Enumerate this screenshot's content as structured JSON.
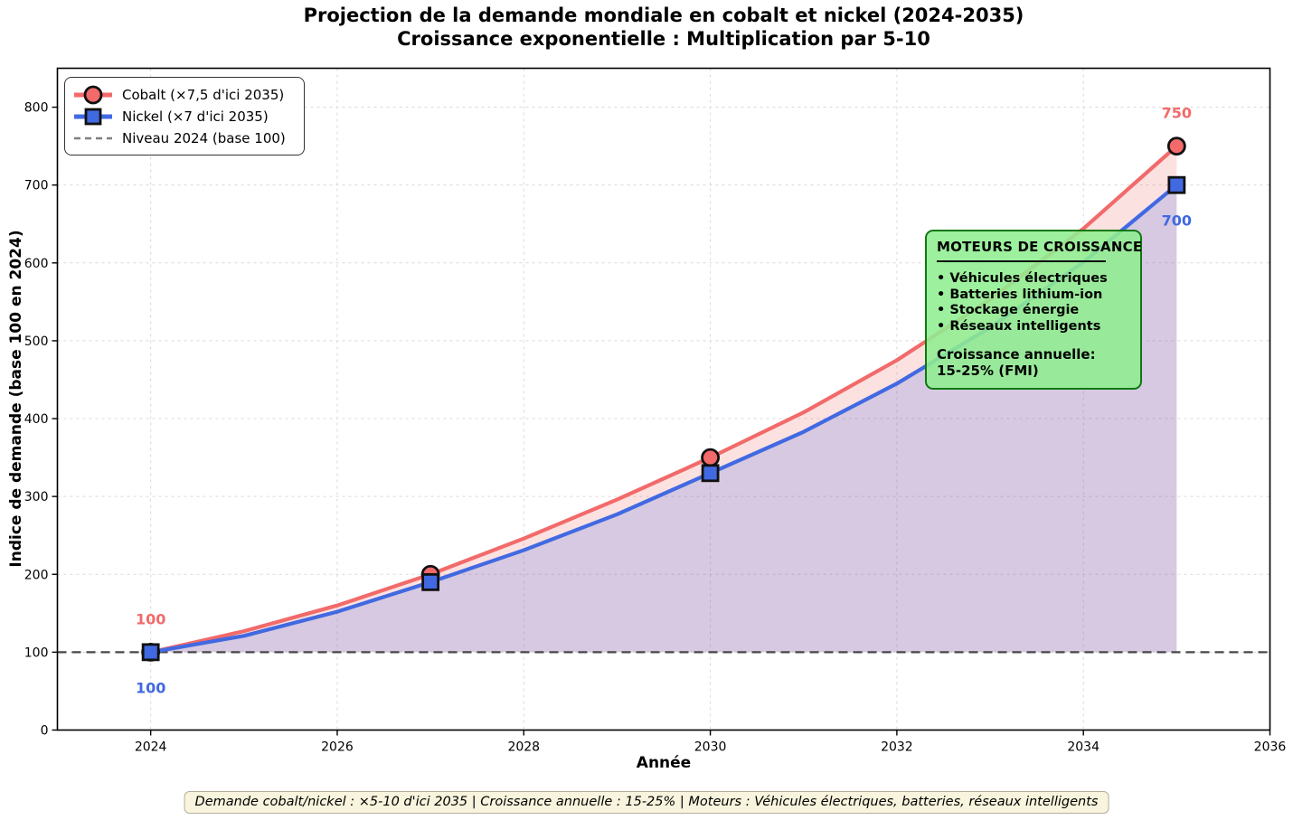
{
  "figure": {
    "title_line1": "Projection de la demande mondiale en cobalt et nickel (2024-2035)",
    "title_line2": "Croissance exponentielle : Multiplication par 5-10"
  },
  "chart_data": {
    "type": "line",
    "title": "Projection de la demande mondiale en cobalt et nickel (2024-2035) — Croissance exponentielle : Multiplication par 5-10",
    "xlabel": "Année",
    "ylabel": "Indice de demande (base 100 en 2024)",
    "xlim": [
      2023,
      2036
    ],
    "ylim": [
      0,
      850
    ],
    "xticks": [
      2024,
      2026,
      2028,
      2030,
      2032,
      2034,
      2036
    ],
    "yticks": [
      0,
      100,
      200,
      300,
      400,
      500,
      600,
      700,
      800
    ],
    "grid": true,
    "x": [
      2024,
      2025,
      2026,
      2027,
      2028,
      2029,
      2030,
      2031,
      2032,
      2033,
      2034,
      2035
    ],
    "series": [
      {
        "name": "Cobalt (×7,5 d'ici 2035)",
        "color": "#f26a6a",
        "marker": "circle",
        "marker_x": [
          2024,
          2027,
          2030,
          2035
        ],
        "values": [
          100,
          127,
          160,
          200,
          246,
          296,
          350,
          408,
          475,
          553,
          644,
          750
        ]
      },
      {
        "name": "Nickel (×7 d'ici 2035)",
        "color": "#4169e1",
        "marker": "square",
        "marker_x": [
          2024,
          2027,
          2030,
          2035
        ],
        "values": [
          100,
          121,
          152,
          190,
          231,
          277,
          330,
          383,
          445,
          517,
          601,
          700
        ]
      }
    ],
    "baseline": {
      "name": "Niveau 2024 (base 100)",
      "value": 100,
      "color": "#474747",
      "style": "dashed"
    },
    "fill_from_value": 100,
    "fill_alpha": 0.2,
    "point_labels": [
      {
        "series": 0,
        "x": 2024,
        "text": "100",
        "placement": "above"
      },
      {
        "series": 1,
        "x": 2024,
        "text": "100",
        "placement": "below"
      },
      {
        "series": 0,
        "x": 2035,
        "text": "750",
        "placement": "above"
      },
      {
        "series": 1,
        "x": 2035,
        "text": "700",
        "placement": "below"
      }
    ],
    "legend": {
      "position": "upper left",
      "entries": [
        {
          "label": "Cobalt (×7,5 d'ici 2035)",
          "swatch": "line-circle",
          "color": "#f26a6a"
        },
        {
          "label": "Nickel (×7 d'ici 2035)",
          "swatch": "line-square",
          "color": "#4169e1"
        },
        {
          "label": "Niveau 2024 (base 100)",
          "swatch": "dashed-line",
          "color": "#7f7f7f"
        }
      ]
    }
  },
  "growth_box": {
    "title": "MOTEURS DE CROISSANCE",
    "items": [
      "• Véhicules électriques",
      "• Batteries lithium-ion",
      "• Stockage énergie",
      "• Réseaux intelligents"
    ],
    "footer_line1": "Croissance annuelle:",
    "footer_line2": "15-25% (FMI)",
    "bg_color": "#90ee90",
    "border_color": "#117711"
  },
  "caption": "Demande cobalt/nickel : ×5-10 d'ici 2035 | Croissance annuelle : 15-25% | Moteurs : Véhicules électriques, batteries, réseaux intelligents"
}
